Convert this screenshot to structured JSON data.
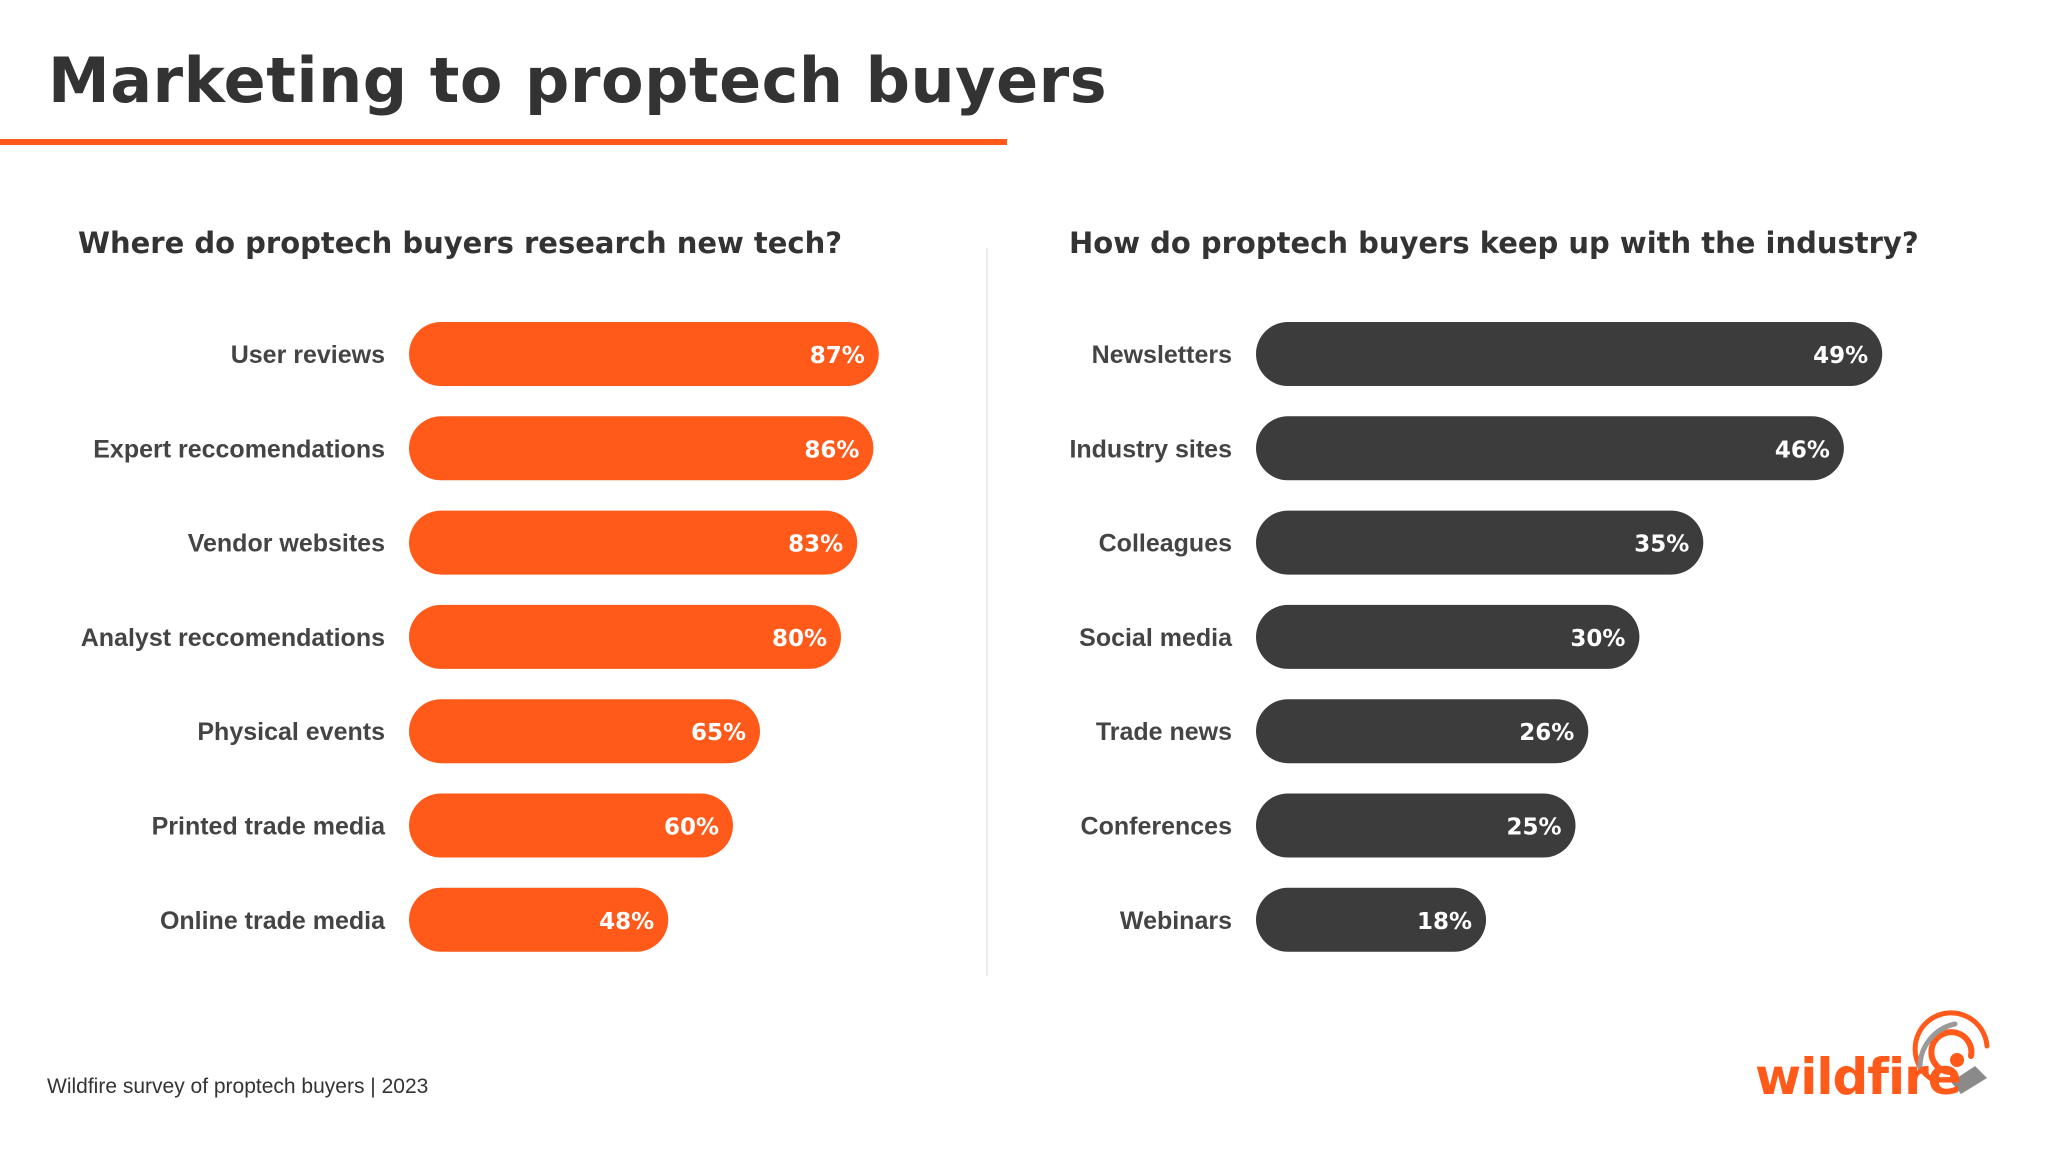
{
  "title": "Marketing to proptech buyers",
  "source": "Wildfire survey of proptech buyers | 2023",
  "logo": {
    "text": "wildfire",
    "icon": "wildfire-logo-icon"
  },
  "colors": {
    "accent": "#ff5a1a",
    "dark_bar": "#3c3c3c",
    "text": "#333333"
  },
  "chart_data": [
    {
      "type": "bar",
      "orientation": "horizontal",
      "title": "Where do proptech buyers research new tech?",
      "categories": [
        "User reviews",
        "Expert reccomendations",
        "Vendor websites",
        "Analyst reccomendations",
        "Physical events",
        "Printed trade media",
        "Online trade media"
      ],
      "values": [
        87,
        86,
        83,
        80,
        65,
        60,
        48
      ],
      "labels": [
        "87%",
        "86%",
        "83%",
        "80%",
        "65%",
        "60%",
        "48%"
      ],
      "unit": "%",
      "xlim": [
        0,
        100
      ],
      "color": "#ff5a1a",
      "grid": false,
      "legend": "none"
    },
    {
      "type": "bar",
      "orientation": "horizontal",
      "title": "How do proptech buyers keep up with the industry?",
      "categories": [
        "Newsletters",
        "Industry sites",
        "Colleagues",
        "Social media",
        "Trade news",
        "Conferences",
        "Webinars"
      ],
      "values": [
        49,
        46,
        35,
        30,
        26,
        25,
        18
      ],
      "labels": [
        "49%",
        "46%",
        "35%",
        "30%",
        "26%",
        "25%",
        "18%"
      ],
      "unit": "%",
      "xlim": [
        0,
        100
      ],
      "color": "#3c3c3c",
      "grid": false,
      "legend": "none"
    }
  ]
}
